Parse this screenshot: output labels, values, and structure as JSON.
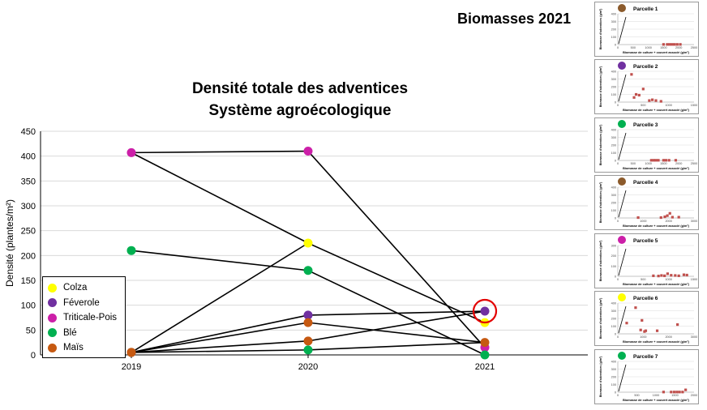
{
  "header": {
    "title": "Biomasses 2021"
  },
  "chart_data": [
    {
      "type": "line",
      "title": "Densité totale des adventices",
      "subtitle": "Système agroécologique",
      "xlabel": "",
      "ylabel": "Densité (plantes/m²)",
      "categories": [
        "2019",
        "2020",
        "2021"
      ],
      "ylim": [
        0,
        450
      ],
      "yticks": [
        "0",
        "50",
        "100",
        "150",
        "200",
        "250",
        "300",
        "350",
        "400",
        "450"
      ],
      "grid": true,
      "legend_position": "bottom-left",
      "series": [
        {
          "name": "Colza",
          "color": "#ffff00",
          "values": [
            5,
            225,
            65
          ]
        },
        {
          "name": "Féverole",
          "color": "#7030a0",
          "values": [
            5,
            80,
            88
          ]
        },
        {
          "name": "Triticale-Pois",
          "color": "#cc1fa8",
          "values": [
            407,
            410,
            15
          ]
        },
        {
          "name": "Blé",
          "color": "#00b050",
          "values": [
            210,
            170,
            0
          ]
        },
        {
          "name": "Maïs",
          "color": "#c65911",
          "values": [
            5,
            65,
            25
          ]
        }
      ],
      "extra_segments": [
        {
          "from": [
            "2019",
            407
          ],
          "to": [
            "2020",
            225
          ]
        },
        {
          "from": [
            "2019",
            5
          ],
          "to": [
            "2020",
            28
          ]
        },
        {
          "from": [
            "2019",
            5
          ],
          "to": [
            "2020",
            10
          ]
        },
        {
          "from": [
            "2020",
            28
          ],
          "to": [
            "2021",
            88
          ]
        },
        {
          "from": [
            "2020",
            10
          ],
          "to": [
            "2021",
            25
          ]
        }
      ],
      "extra_points": [
        {
          "x": "2020",
          "y": 28,
          "color": "#c65911"
        },
        {
          "x": "2020",
          "y": 10,
          "color": "#00b050"
        }
      ],
      "highlight": {
        "x": "2021",
        "y": 88,
        "color": "#e30000"
      }
    },
    {
      "type": "scatter",
      "title": "Parcelle 1",
      "dot_color": "#8b5a2b",
      "ylabel": "Biomasse d'adventices (g/m²)",
      "xlabel": "Biomasse de culture + couvert associé (g/m²)",
      "xlim": [
        0,
        2500
      ],
      "ylim": [
        0,
        400
      ],
      "xticks": [
        "0",
        "500",
        "1000",
        "1500",
        "2000",
        "2500"
      ],
      "yticks": [
        "0",
        "100",
        "200",
        "300",
        "400"
      ],
      "x": [
        1500,
        1620,
        1700,
        1780,
        1860,
        1950,
        2050
      ],
      "y": [
        2,
        2,
        2,
        2,
        2,
        2,
        2
      ]
    },
    {
      "type": "scatter",
      "title": "Parcelle 2",
      "dot_color": "#7030a0",
      "ylabel": "Biomasse d'adventices (g/m²)",
      "xlabel": "Biomasse de culture + couvert associé (g/m²)",
      "xlim": [
        0,
        1500
      ],
      "ylim": [
        0,
        400
      ],
      "xticks": [
        "0",
        "500",
        "1000",
        "1500"
      ],
      "yticks": [
        "0",
        "100",
        "200",
        "300",
        "400"
      ],
      "x": [
        270,
        320,
        360,
        420,
        500,
        620,
        680,
        750,
        850
      ],
      "y": [
        360,
        60,
        100,
        90,
        170,
        20,
        30,
        20,
        10
      ]
    },
    {
      "type": "scatter",
      "title": "Parcelle 3",
      "dot_color": "#00b050",
      "ylabel": "Biomasse d'adventices (g/m²)",
      "xlabel": "Biomasse de culture + couvert associé (g/m²)",
      "xlim": [
        0,
        2500
      ],
      "ylim": [
        0,
        400
      ],
      "xticks": [
        "0",
        "500",
        "1000",
        "1500",
        "2000",
        "2500"
      ],
      "yticks": [
        "0",
        "100",
        "200",
        "300",
        "400"
      ],
      "x": [
        1100,
        1180,
        1250,
        1330,
        1500,
        1580,
        1680,
        1900
      ],
      "y": [
        2,
        2,
        2,
        2,
        2,
        2,
        2,
        2
      ]
    },
    {
      "type": "scatter",
      "title": "Parcelle 4",
      "dot_color": "#8b5a2b",
      "ylabel": "Biomasse d'adventices (g/m²)",
      "xlabel": "Biomasse de culture + couvert associé (g/m²)",
      "xlim": [
        0,
        3000
      ],
      "ylim": [
        0,
        400
      ],
      "xticks": [
        "0",
        "1000",
        "2000",
        "3000"
      ],
      "yticks": [
        "0",
        "100",
        "200",
        "300",
        "400"
      ],
      "x": [
        800,
        1700,
        1850,
        1950,
        2050,
        2150,
        2400
      ],
      "y": [
        5,
        5,
        15,
        30,
        60,
        10,
        10
      ]
    },
    {
      "type": "scatter",
      "title": "Parcelle 5",
      "dot_color": "#cc1fa8",
      "ylabel": "Biomasse d'adventices (g/m²)",
      "xlabel": "Biomasse de culture + couvert associé (g/m²)",
      "xlim": [
        0,
        1500
      ],
      "ylim": [
        0,
        300
      ],
      "xticks": [
        "0",
        "500",
        "1000",
        "1500"
      ],
      "yticks": [
        "0",
        "100",
        "200",
        "300"
      ],
      "x": [
        700,
        800,
        860,
        920,
        980,
        1050,
        1130,
        1200,
        1300,
        1360
      ],
      "y": [
        5,
        3,
        8,
        5,
        25,
        10,
        8,
        5,
        15,
        12
      ]
    },
    {
      "type": "scatter",
      "title": "Parcelle 6",
      "dot_color": "#ffff00",
      "ylabel": "Biomasse d'adventices (g/m²)",
      "xlabel": "Biomasse de culture + couvert associé (g/m²)",
      "xlim": [
        0,
        3000
      ],
      "ylim": [
        0,
        400
      ],
      "xticks": [
        "0",
        "1000",
        "2000",
        "3000"
      ],
      "yticks": [
        "0",
        "100",
        "200",
        "300",
        "400"
      ],
      "x": [
        350,
        700,
        900,
        950,
        1050,
        1100,
        1550,
        2350
      ],
      "y": [
        140,
        340,
        50,
        175,
        30,
        40,
        40,
        120
      ]
    },
    {
      "type": "scatter",
      "title": "Parcelle 7",
      "dot_color": "#00b050",
      "ylabel": "Biomasse d'adventices (g/m²)",
      "xlabel": "Biomasse de culture + couvert associé (g/m²)",
      "xlim": [
        0,
        2000
      ],
      "ylim": [
        0,
        400
      ],
      "xticks": [
        "0",
        "500",
        "1000",
        "1500",
        "2000"
      ],
      "yticks": [
        "0",
        "100",
        "200",
        "300",
        "400"
      ],
      "x": [
        1200,
        1400,
        1480,
        1550,
        1620,
        1700,
        1780
      ],
      "y": [
        2,
        2,
        2,
        2,
        2,
        2,
        30
      ]
    }
  ]
}
